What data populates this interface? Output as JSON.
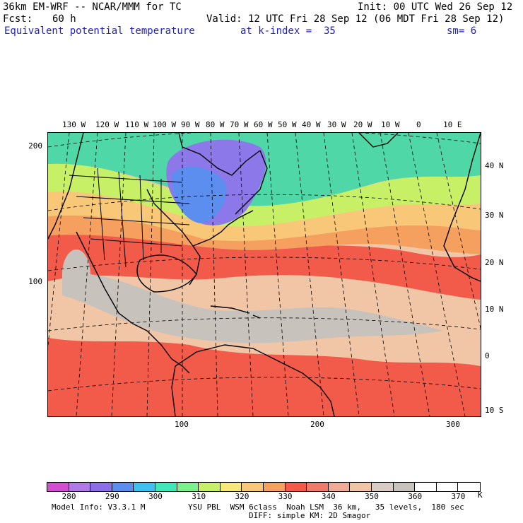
{
  "header": {
    "model_title": "36km EM-WRF -- NCAR/MMM for TC",
    "init": "Init: 00 UTC Wed 26 Sep 12",
    "fcst_label": "Fcst:",
    "fcst_value": "60 h",
    "valid": "Valid: 12 UTC Fri 28 Sep 12 (06 MDT Fri 28 Sep 12)",
    "field_name": "Equivalent potential temperature",
    "level": "at k-index =  35",
    "smoothing": "sm= 6"
  },
  "map": {
    "top_longitude_labels": [
      "130 W",
      "120 W",
      "110 W",
      "100 W",
      "90 W",
      "80 W",
      "70 W",
      "60 W",
      "50 W",
      "40 W",
      "30 W",
      "20 W",
      "10 W",
      "0",
      "10 E"
    ],
    "right_latitude_labels": [
      "40 N",
      "30 N",
      "20 N",
      "10 N",
      "0",
      "10 S"
    ],
    "left_grid_labels": [
      "200",
      "100"
    ],
    "bottom_grid_labels": [
      "100",
      "200",
      "300"
    ],
    "colors": {
      "cold": "#8c78e8",
      "cool": "#4fd7a8",
      "mild": "#c8f066",
      "warm": "#f8c878",
      "hot": "#f25a4a",
      "tan": "#f0c6a6",
      "gray": "#c8c2bc"
    }
  },
  "colorbar": {
    "colors": [
      "#d24fd2",
      "#b07ae8",
      "#8c6ee8",
      "#5c8ef0",
      "#3ec0f0",
      "#3ee8b8",
      "#7cf08a",
      "#c8f066",
      "#f8e878",
      "#f8c878",
      "#f6a060",
      "#f25a4a",
      "#f07a6a",
      "#f0aa96",
      "#f0c6a6",
      "#d8ccc4",
      "#c8c2bc",
      "#ffffff",
      "#ffffff",
      "#ffffff"
    ],
    "labels": [
      "280",
      "290",
      "300",
      "310",
      "320",
      "330",
      "340",
      "350",
      "360",
      "370"
    ],
    "unit": "K"
  },
  "footer": {
    "model_info": "Model Info: V3.3.1 M",
    "physics": "YSU PBL  WSM 6class  Noah LSM  36 km,   35 levels,  180 sec",
    "diffusion": "DIFF: simple KM: 2D Smagor"
  }
}
